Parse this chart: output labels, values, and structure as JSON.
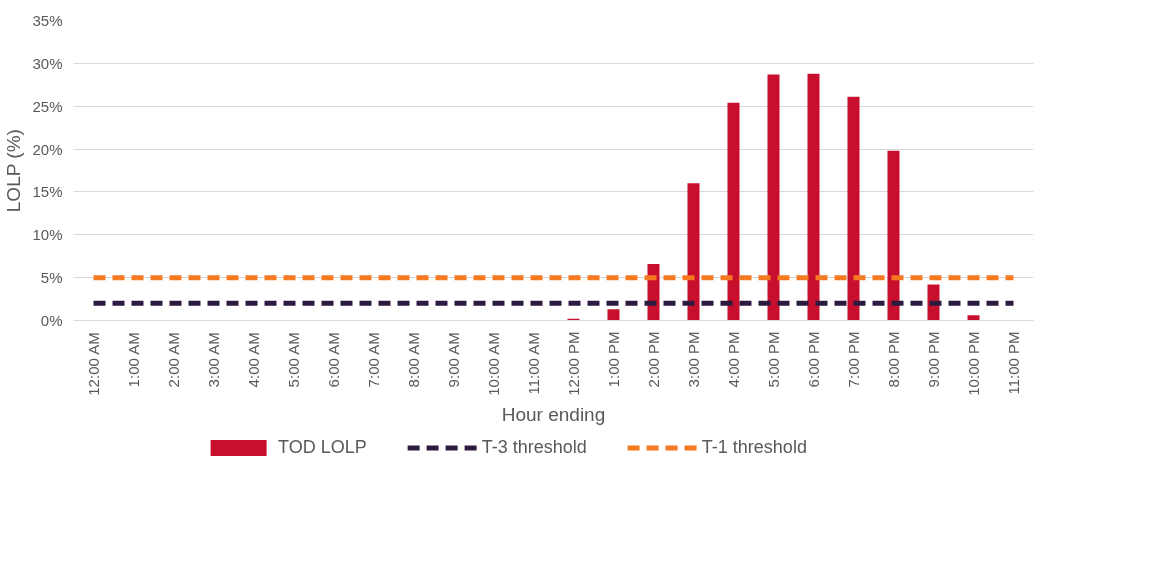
{
  "chart_data": {
    "type": "bar",
    "xlabel": "Hour ending",
    "ylabel": "LOLP (%)",
    "categories": [
      "12:00 AM",
      "1:00 AM",
      "2:00 AM",
      "3:00 AM",
      "4:00 AM",
      "5:00 AM",
      "6:00 AM",
      "7:00 AM",
      "8:00 AM",
      "9:00 AM",
      "10:00 AM",
      "11:00 AM",
      "12:00 PM",
      "1:00 PM",
      "2:00 PM",
      "3:00 PM",
      "4:00 PM",
      "5:00 PM",
      "6:00 PM",
      "7:00 PM",
      "8:00 PM",
      "9:00 PM",
      "10:00 PM",
      "11:00 PM"
    ],
    "series": [
      {
        "name": "TOD LOLP",
        "color": "#c8102e",
        "values": [
          0,
          0,
          0,
          0,
          0,
          0,
          0,
          0,
          0,
          0,
          0,
          0,
          0.2,
          1.3,
          6.6,
          16.0,
          25.4,
          28.7,
          28.8,
          26.1,
          19.8,
          4.2,
          0.6,
          0
        ]
      },
      {
        "name": "T-3 threshold",
        "type": "line",
        "line_style": "dashed",
        "color": "#2d1a3f",
        "values": [
          2,
          2,
          2,
          2,
          2,
          2,
          2,
          2,
          2,
          2,
          2,
          2,
          2,
          2,
          2,
          2,
          2,
          2,
          2,
          2,
          2,
          2,
          2,
          2
        ]
      },
      {
        "name": "T-1 threshold",
        "type": "line",
        "line_style": "dashed",
        "color": "#f47920",
        "values": [
          5,
          5,
          5,
          5,
          5,
          5,
          5,
          5,
          5,
          5,
          5,
          5,
          5,
          5,
          5,
          5,
          5,
          5,
          5,
          5,
          5,
          5,
          5,
          5
        ]
      }
    ],
    "ylim": [
      0,
      35
    ],
    "yticks": [
      {
        "value": 0,
        "label": "0%"
      },
      {
        "value": 5,
        "label": "5%"
      },
      {
        "value": 10,
        "label": "10%"
      },
      {
        "value": 15,
        "label": "15%"
      },
      {
        "value": 20,
        "label": "20%"
      },
      {
        "value": 25,
        "label": "25%"
      },
      {
        "value": 30,
        "label": "30%"
      },
      {
        "value": 35,
        "label": "35%"
      }
    ],
    "grid": "y",
    "legend": "bottom"
  }
}
